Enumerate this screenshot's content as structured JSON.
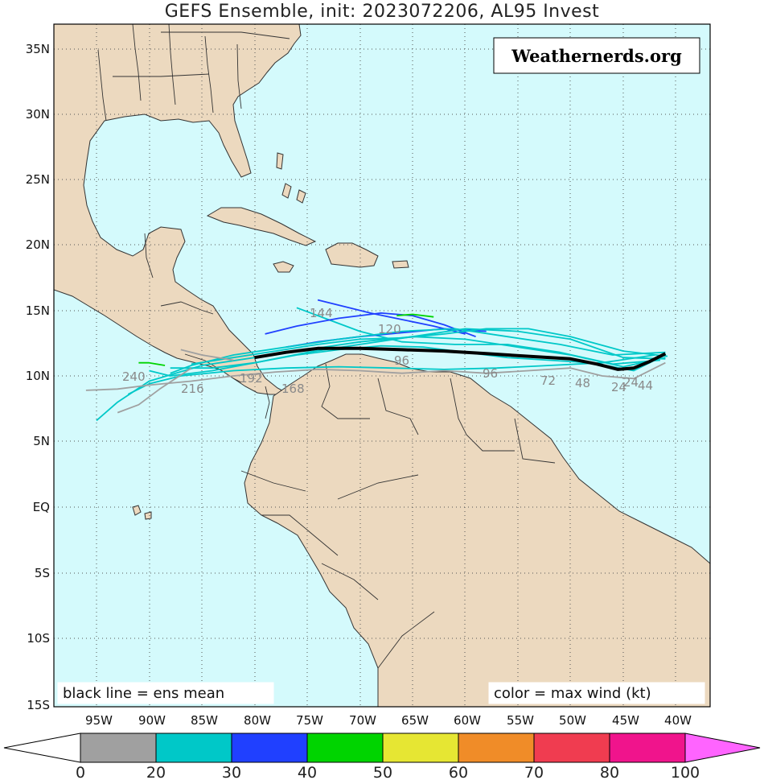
{
  "title": "GEFS Ensemble, init: 2023072206, AL95 Invest",
  "watermark": "Weathernerds.org",
  "note_left": "black line = ens mean",
  "note_right": "color = max wind (kt)",
  "lat_labels": [
    "35N",
    "30N",
    "25N",
    "20N",
    "15N",
    "10N",
    "5N",
    "EQ",
    "5S",
    "10S",
    "15S"
  ],
  "lon_labels": [
    "95W",
    "90W",
    "85W",
    "80W",
    "75W",
    "70W",
    "65W",
    "60W",
    "55W",
    "50W",
    "45W",
    "40W"
  ],
  "colorbar": {
    "labels": [
      "0",
      "20",
      "30",
      "40",
      "50",
      "60",
      "70",
      "80",
      "100"
    ],
    "colors": [
      "#ffffff",
      "#a0a0a0",
      "#00c8c8",
      "#2040ff",
      "#00d400",
      "#e6e633",
      "#f08c28",
      "#f03c50",
      "#f0148c",
      "#ff64ff"
    ]
  },
  "colors": {
    "ocean": "#d4fafc",
    "land": "#ecd9bf",
    "border": "#333333",
    "mean_track": "#000000"
  },
  "hour_labels": [
    "240",
    "216",
    "192",
    "168",
    "144",
    "120",
    "96",
    "72",
    "48",
    "24",
    "24",
    "44",
    "96"
  ],
  "mean_track": [
    [
      -80.0,
      11.4
    ],
    [
      -77.0,
      11.8
    ],
    [
      -74.0,
      12.1
    ],
    [
      -70.0,
      12.1
    ],
    [
      -66.0,
      12.0
    ],
    [
      -62.0,
      11.9
    ],
    [
      -58.0,
      11.7
    ],
    [
      -54.0,
      11.5
    ],
    [
      -50.0,
      11.3
    ],
    [
      -47.5,
      10.9
    ],
    [
      -45.5,
      10.5
    ],
    [
      -44.0,
      10.6
    ],
    [
      -42.5,
      11.1
    ],
    [
      -41.0,
      11.7
    ]
  ],
  "member_tracks": [
    {
      "color": "#00c8c8",
      "pts": [
        [
          -41.0,
          11.6
        ],
        [
          -44.0,
          10.4
        ],
        [
          -48.0,
          11.0
        ],
        [
          -52.0,
          11.2
        ],
        [
          -56.0,
          11.4
        ],
        [
          -60.0,
          11.8
        ],
        [
          -64.0,
          12.2
        ],
        [
          -68.0,
          12.3
        ],
        [
          -72.0,
          12.0
        ],
        [
          -76.0,
          11.6
        ],
        [
          -80.0,
          11.0
        ],
        [
          -84.0,
          10.4
        ],
        [
          -88.0,
          10.0
        ],
        [
          -90.0,
          10.4
        ]
      ]
    },
    {
      "color": "#00c8c8",
      "pts": [
        [
          -41.0,
          11.4
        ],
        [
          -45.0,
          10.7
        ],
        [
          -50.0,
          11.6
        ],
        [
          -55.0,
          12.2
        ],
        [
          -60.0,
          12.8
        ],
        [
          -65.0,
          13.0
        ],
        [
          -70.0,
          12.6
        ],
        [
          -75.0,
          12.0
        ],
        [
          -80.0,
          11.4
        ],
        [
          -85.0,
          10.8
        ],
        [
          -90.0,
          9.6
        ],
        [
          -93.0,
          8.0
        ],
        [
          -95.0,
          6.6
        ]
      ]
    },
    {
      "color": "#00c8c8",
      "pts": [
        [
          -41.5,
          11.2
        ],
        [
          -46.0,
          10.9
        ],
        [
          -51.0,
          11.8
        ],
        [
          -56.0,
          12.4
        ],
        [
          -61.0,
          12.4
        ],
        [
          -66.0,
          12.6
        ],
        [
          -70.0,
          13.4
        ],
        [
          -73.0,
          14.3
        ],
        [
          -76.0,
          15.2
        ]
      ]
    },
    {
      "color": "#2040ff",
      "pts": [
        [
          -60.0,
          13.2
        ],
        [
          -63.0,
          13.8
        ],
        [
          -66.0,
          14.3
        ],
        [
          -69.0,
          14.8
        ],
        [
          -72.0,
          15.4
        ],
        [
          -74.0,
          15.8
        ]
      ]
    },
    {
      "color": "#2040ff",
      "pts": [
        [
          -58.0,
          13.4
        ],
        [
          -62.0,
          13.6
        ],
        [
          -66.0,
          13.3
        ],
        [
          -70.0,
          13.0
        ],
        [
          -74.0,
          12.6
        ],
        [
          -77.0,
          12.2
        ]
      ]
    },
    {
      "color": "#2040ff",
      "pts": [
        [
          -59.0,
          13.0
        ],
        [
          -62.0,
          13.9
        ],
        [
          -65.0,
          14.6
        ],
        [
          -68.0,
          14.8
        ],
        [
          -72.0,
          14.4
        ],
        [
          -76.0,
          13.8
        ],
        [
          -79.0,
          13.2
        ]
      ]
    },
    {
      "color": "#00c8c8",
      "pts": [
        [
          -41.0,
          11.8
        ],
        [
          -46.0,
          11.6
        ],
        [
          -51.0,
          12.4
        ],
        [
          -56.0,
          13.0
        ],
        [
          -61.0,
          13.6
        ],
        [
          -66.0,
          13.4
        ],
        [
          -72.0,
          12.8
        ],
        [
          -77.0,
          12.2
        ],
        [
          -82.0,
          11.6
        ],
        [
          -86.0,
          10.8
        ],
        [
          -88.0,
          10.2
        ]
      ]
    },
    {
      "color": "#00c8c8",
      "pts": [
        [
          -42.0,
          11.6
        ],
        [
          -47.0,
          11.0
        ],
        [
          -52.0,
          10.8
        ],
        [
          -57.0,
          10.6
        ],
        [
          -62.0,
          10.5
        ],
        [
          -67.0,
          10.6
        ],
        [
          -72.0,
          10.7
        ],
        [
          -77.0,
          10.6
        ],
        [
          -82.0,
          10.4
        ],
        [
          -87.0,
          10.0
        ],
        [
          -90.0,
          9.4
        ],
        [
          -92.0,
          8.6
        ]
      ]
    },
    {
      "color": "#00c8c8",
      "pts": [
        [
          -41.0,
          11.3
        ],
        [
          -45.0,
          11.4
        ],
        [
          -50.0,
          12.8
        ],
        [
          -55.0,
          13.4
        ],
        [
          -60.0,
          13.6
        ],
        [
          -65.0,
          13.0
        ],
        [
          -70.0,
          12.4
        ],
        [
          -75.0,
          11.8
        ],
        [
          -80.0,
          11.0
        ],
        [
          -84.0,
          10.6
        ],
        [
          -88.0,
          10.6
        ]
      ]
    },
    {
      "color": "#00c8c8",
      "pts": [
        [
          -40.8,
          11.5
        ],
        [
          -45.0,
          11.9
        ],
        [
          -50.0,
          13.0
        ],
        [
          -54.0,
          13.6
        ],
        [
          -58.0,
          13.6
        ],
        [
          -62.0,
          13.2
        ],
        [
          -66.0,
          12.9
        ],
        [
          -70.0,
          12.8
        ],
        [
          -74.0,
          12.4
        ],
        [
          -78.0,
          11.9
        ],
        [
          -82.0,
          11.4
        ],
        [
          -86.0,
          10.9
        ]
      ]
    },
    {
      "color": "#a0a0a0",
      "pts": [
        [
          -41.0,
          11.0
        ],
        [
          -44.0,
          9.8
        ],
        [
          -47.0,
          10.0
        ],
        [
          -50.0,
          10.6
        ],
        [
          -54.0,
          10.4
        ],
        [
          -58.0,
          10.2
        ],
        [
          -62.0,
          10.4
        ],
        [
          -66.0,
          10.2
        ],
        [
          -70.0,
          10.4
        ],
        [
          -74.0,
          10.5
        ],
        [
          -78.0,
          10.3
        ],
        [
          -82.0,
          10.0
        ],
        [
          -86.0,
          9.6
        ],
        [
          -90.0,
          9.3
        ],
        [
          -93.0,
          9.0
        ],
        [
          -96.0,
          8.9
        ]
      ]
    },
    {
      "color": "#a0a0a0",
      "pts": [
        [
          -82.0,
          11.2
        ],
        [
          -85.0,
          11.6
        ],
        [
          -87.0,
          12.0
        ]
      ]
    },
    {
      "color": "#a0a0a0",
      "pts": [
        [
          -86.0,
          10.6
        ],
        [
          -89.0,
          9.0
        ],
        [
          -91.0,
          7.8
        ],
        [
          -93.0,
          7.2
        ]
      ]
    },
    {
      "color": "#00d400",
      "pts": [
        [
          -63.0,
          14.5
        ],
        [
          -65.0,
          14.7
        ],
        [
          -66.5,
          14.6
        ]
      ]
    },
    {
      "color": "#00d400",
      "pts": [
        [
          -88.5,
          10.8
        ],
        [
          -90.0,
          11.0
        ],
        [
          -91.0,
          11.0
        ]
      ]
    }
  ]
}
